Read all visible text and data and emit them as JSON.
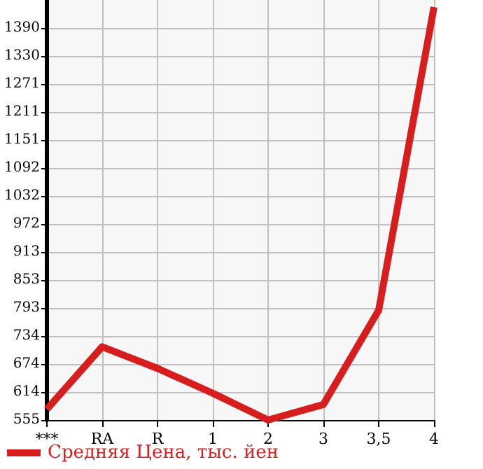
{
  "chart_data": {
    "type": "line",
    "categories": [
      "***",
      "RA",
      "R",
      "1",
      "2",
      "3",
      "3,5",
      "4"
    ],
    "series": [
      {
        "name": "Средняя Цена, тыс. йен",
        "color": "#d71e1e",
        "values": [
          578,
          711,
          665,
          612,
          555,
          588,
          789,
          1435
        ]
      }
    ],
    "ylim": [
      555,
      1450
    ],
    "yticks": [
      555,
      614,
      674,
      734,
      793,
      853,
      913,
      972,
      1032,
      1092,
      1151,
      1211,
      1271,
      1330,
      1390
    ],
    "grid": true,
    "legend": "bottom left",
    "marker": "none",
    "line_style": "solid"
  }
}
